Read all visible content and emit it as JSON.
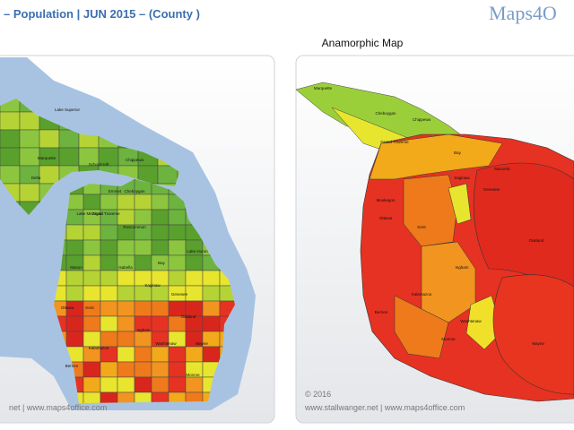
{
  "header": {
    "title": "– Population | JUN 2015 – (County )",
    "logo": "Maps4O"
  },
  "left_map": {
    "labels": [
      "Lake Superior",
      "Marquette",
      "Delta",
      "Chippewa",
      "Schoolcraft",
      "Lake Michigan",
      "Emmet",
      "Cheboygan",
      "Lake Huron",
      "Grand Traverse",
      "Roscommon",
      "Mason",
      "Isabella",
      "Bay",
      "Kent",
      "Ottawa",
      "Saginaw",
      "Genesee",
      "Ingham",
      "Oakland",
      "Kalamazoo",
      "Washtenaw",
      "Wayne",
      "Berrien",
      "Monroe"
    ],
    "footer": "net | www.maps4office.com"
  },
  "right_map": {
    "title": "Anamorphic Map",
    "labels": [
      "Marquette",
      "Chippewa",
      "Cheboygan",
      "Grand Traverse",
      "Bay",
      "Muskegon",
      "Ottawa",
      "Kent",
      "Saginaw",
      "Genesee",
      "Oakland",
      "Ingham",
      "Kalamazoo",
      "Berrien",
      "Washtenaw",
      "Wayne",
      "Monroe",
      "Macomb"
    ],
    "copyright": "© 2016",
    "footer": "www.stallwanger.net | www.maps4office.com"
  }
}
